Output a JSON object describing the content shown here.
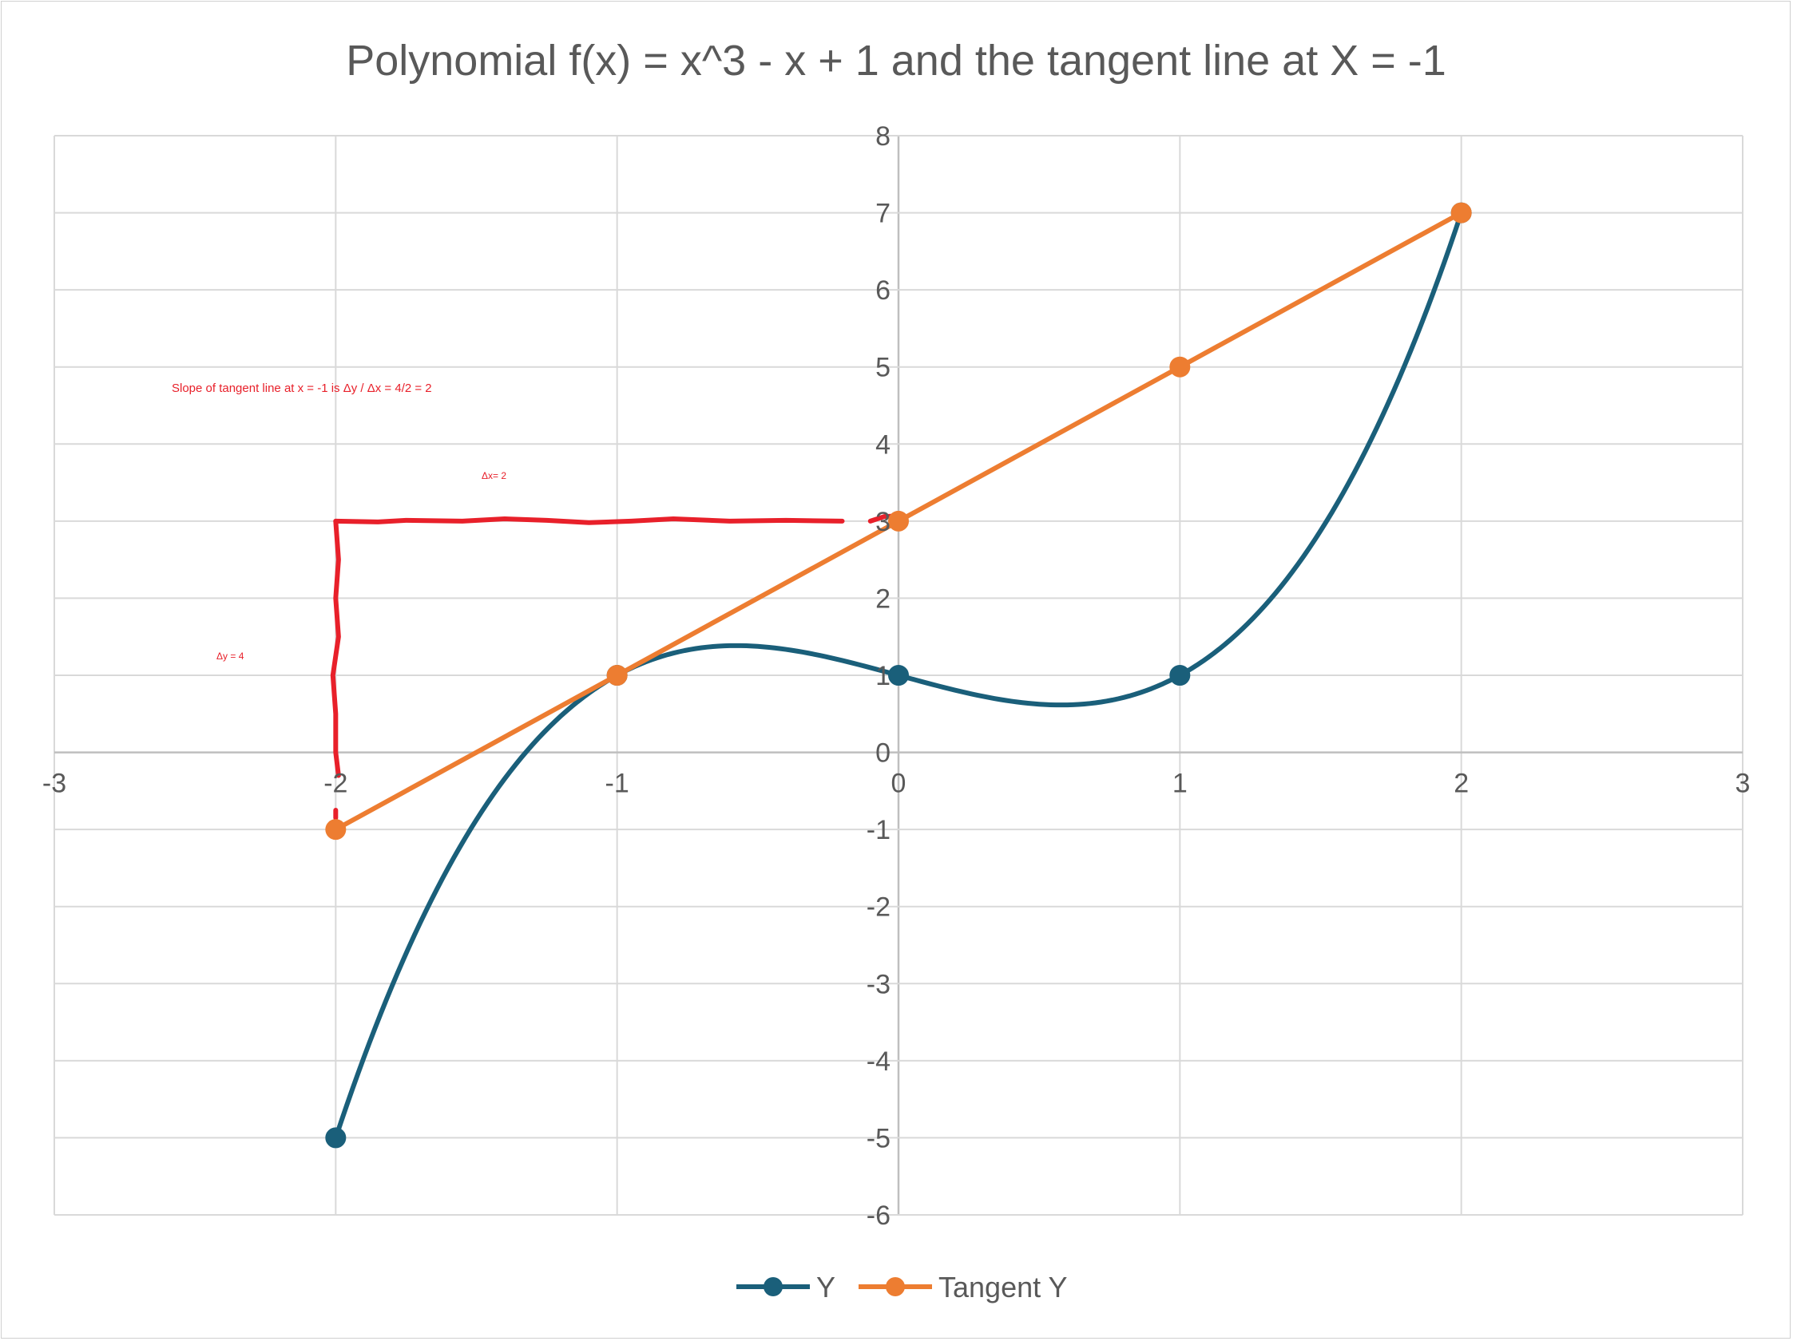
{
  "chart_data": {
    "type": "scatter",
    "title": "Polynomial f(x) = x^3 - x + 1 and the tangent line at X = -1",
    "xlabel": "",
    "ylabel": "",
    "xlim": [
      -3,
      3
    ],
    "ylim": [
      -6,
      8
    ],
    "x_ticks": [
      "-3",
      "-2",
      "-1",
      "0",
      "1",
      "2",
      "3"
    ],
    "y_ticks": [
      "-6",
      "-5",
      "-4",
      "-3",
      "-2",
      "-1",
      "0",
      "1",
      "2",
      "3",
      "4",
      "5",
      "6",
      "7",
      "8"
    ],
    "grid": true,
    "legend_position": "bottom",
    "series": [
      {
        "name": "Y",
        "color": "#1a5f7a",
        "smooth": true,
        "x": [
          -2,
          -1,
          0,
          1,
          2
        ],
        "y": [
          -5,
          1,
          1,
          1,
          7
        ]
      },
      {
        "name": "Tangent Y",
        "color": "#ed7d31",
        "smooth": false,
        "x": [
          -2,
          -1,
          0,
          1,
          2
        ],
        "y": [
          -1,
          1,
          3,
          5,
          7
        ]
      }
    ],
    "annotations": {
      "color": "#e8202a",
      "slope_text": "Slope of tangent line at x = -1 is Δy / Δx = 4/2 = 2",
      "dx_text": "Δx= 2",
      "dy_text": "Δy = 4"
    }
  }
}
